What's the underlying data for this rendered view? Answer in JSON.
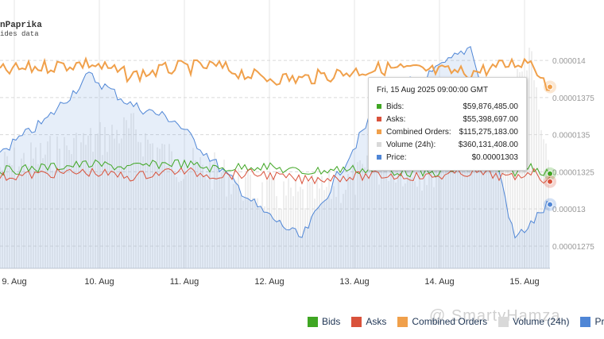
{
  "brand": {
    "name": "nPaprika",
    "subtitle": "ides data"
  },
  "chart_data": {
    "type": "line",
    "x_ticks": [
      "9. Aug",
      "10. Aug",
      "11. Aug",
      "12. Aug",
      "13. Aug",
      "14. Aug",
      "15. Aug"
    ],
    "y_ticks": [
      "0.000014",
      "0.00001375",
      "0.0000135",
      "0.00001325",
      "0.000013",
      "0.00001275"
    ],
    "price_range": [
      1.26e-05,
      1.43e-05
    ],
    "orders_range": [
      0,
      160000000
    ],
    "volume_range": [
      0,
      1000000000
    ],
    "x": [
      0,
      0.5,
      1,
      1.5,
      2,
      2.5,
      3,
      3.5,
      4,
      4.5,
      5,
      5.5,
      6,
      6.2,
      6.4
    ],
    "series": [
      {
        "name": "Bids",
        "color": "#3fa623",
        "values": [
          62000000,
          64000000,
          66000000,
          64000000,
          67000000,
          63000000,
          65000000,
          61000000,
          63000000,
          62000000,
          60000000,
          64000000,
          61000000,
          65000000,
          60000000
        ]
      },
      {
        "name": "Asks",
        "color": "#d9523b",
        "values": [
          58000000,
          60000000,
          61000000,
          58000000,
          62000000,
          59000000,
          60000000,
          56000000,
          58000000,
          59000000,
          58000000,
          61000000,
          57000000,
          62000000,
          55000000
        ]
      },
      {
        "name": "Combined Orders",
        "color": "#f0a04b",
        "values": [
          125000000,
          128000000,
          130000000,
          122000000,
          127000000,
          128000000,
          121000000,
          120000000,
          124000000,
          127000000,
          125000000,
          124000000,
          130000000,
          132000000,
          115000000
        ]
      },
      {
        "name": "Volume (24h)",
        "color": "#d9d9d9",
        "values": [
          400000000,
          450000000,
          500000000,
          550000000,
          420000000,
          380000000,
          300000000,
          280000000,
          330000000,
          410000000,
          380000000,
          520000000,
          720000000,
          820000000,
          360000000
        ]
      },
      {
        "name": "Price",
        "color": "#4f86d6",
        "values": [
          1.34e-05,
          1.36e-05,
          1.39e-05,
          1.37e-05,
          1.36e-05,
          1.33e-05,
          1.3e-05,
          1.28e-05,
          1.33e-05,
          1.38e-05,
          1.39e-05,
          1.41e-05,
          1.28e-05,
          1.29e-05,
          1.303e-05
        ]
      }
    ],
    "tooltip": {
      "header": "Fri, 15 Aug 2025 09:00:00 GMT",
      "rows": [
        {
          "label": "Bids:",
          "value": "$59,876,485.00",
          "color": "#3fa623"
        },
        {
          "label": "Asks:",
          "value": "$55,398,697.00",
          "color": "#d9523b"
        },
        {
          "label": "Combined Orders:",
          "value": "$115,275,183.00",
          "color": "#f0a04b"
        },
        {
          "label": "Volume (24h):",
          "value": "$360,131,408.00",
          "color": "#d9d9d9"
        },
        {
          "label": "Price:",
          "value": "$0.00001303",
          "color": "#4f86d6"
        }
      ]
    }
  },
  "legend": [
    {
      "label": "Bids",
      "color": "#3fa623"
    },
    {
      "label": "Asks",
      "color": "#d9523b"
    },
    {
      "label": "Combined Orders",
      "color": "#f0a04b"
    },
    {
      "label": "Volume (24h)",
      "color": "#d9d9d9"
    },
    {
      "label": "Price",
      "color": "#4f86d6"
    }
  ],
  "watermark": "@ SmartyHamza"
}
